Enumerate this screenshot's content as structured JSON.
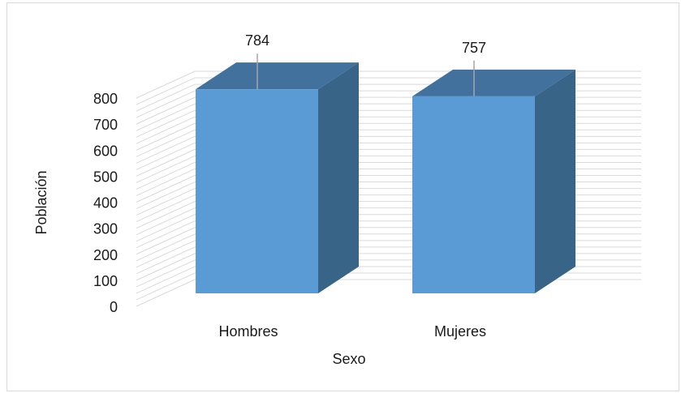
{
  "chart_data": {
    "type": "bar",
    "title": "",
    "xlabel": "Sexo",
    "ylabel": "Población",
    "categories": [
      "Hombres",
      "Mujeres"
    ],
    "values": [
      784,
      757
    ],
    "data_labels": [
      "784",
      "757"
    ],
    "ylim": [
      0,
      800
    ],
    "yticks": [
      0,
      100,
      200,
      300,
      400,
      500,
      600,
      700,
      800
    ],
    "grid": true,
    "legend": "none",
    "style": "3d-column",
    "colors": {
      "front": "#5b9bd5",
      "side": "#386487",
      "top": "#41719c",
      "grid": "#d9d9d9"
    }
  }
}
